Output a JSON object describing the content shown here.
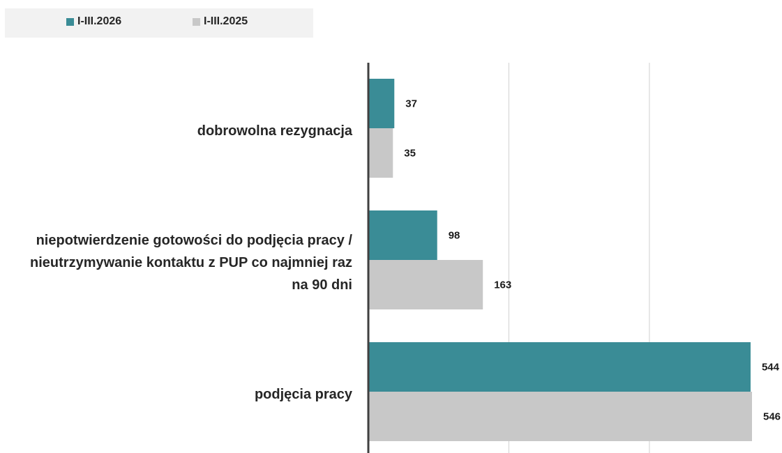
{
  "chart_data": {
    "type": "bar",
    "orientation": "horizontal",
    "categories": [
      "dobrowolna rezygnacja",
      "niepotwierdzenie gotowości do podjęcia pracy / nieutrzymywanie kontaktu z PUP co najmniej raz na 90 dni",
      "podjęcia pracy"
    ],
    "category_lines": [
      [
        "dobrowolna rezygnacja"
      ],
      [
        "niepotwierdzenie gotowości do podjęcia pracy /",
        "nieutrzymywanie kontaktu z PUP co najmniej raz",
        "na 90 dni"
      ],
      [
        "podjęcia pracy"
      ]
    ],
    "series": [
      {
        "name": "I-III.2026",
        "color": "#3a8c96",
        "values": [
          37,
          98,
          544
        ]
      },
      {
        "name": "I-III.2025",
        "color": "#c8c8c8",
        "values": [
          35,
          163,
          546
        ]
      }
    ],
    "xlim": [
      0,
      600
    ],
    "grid": true,
    "legend_position": "top-left",
    "data_labels": true
  }
}
